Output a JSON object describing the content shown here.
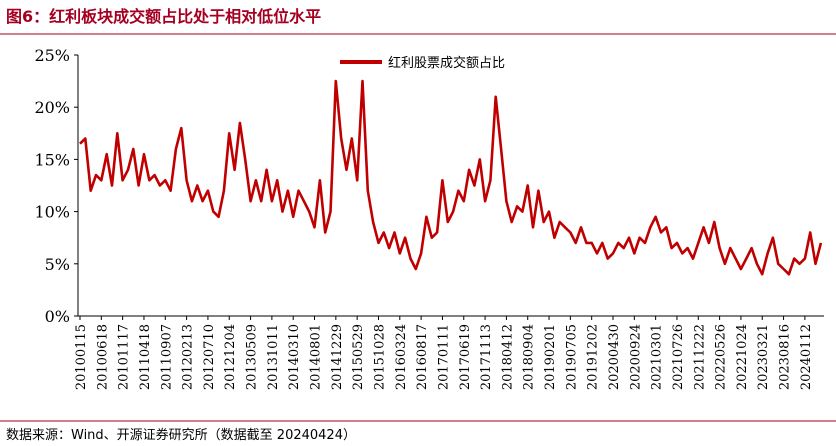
{
  "title": "图6：红利板块成交额占比处于相对低位水平",
  "source": "数据来源：Wind、开源证券研究所（数据截至 20240424）",
  "chart_data": {
    "type": "line",
    "categories": [
      "20100115",
      null,
      null,
      null,
      "20100618",
      null,
      null,
      null,
      "20101117",
      null,
      null,
      null,
      "20110418",
      null,
      null,
      null,
      "20110907",
      null,
      null,
      null,
      "20120213",
      null,
      null,
      null,
      "20120710",
      null,
      null,
      null,
      "20121204",
      null,
      null,
      null,
      "20130509",
      null,
      null,
      null,
      "20131011",
      null,
      null,
      null,
      "20140310",
      null,
      null,
      null,
      "20140801",
      null,
      null,
      null,
      "20141229",
      null,
      null,
      null,
      "20150529",
      null,
      null,
      null,
      "20151028",
      null,
      null,
      null,
      "20160324",
      null,
      null,
      null,
      "20160817",
      null,
      null,
      null,
      "20170111",
      null,
      null,
      null,
      "20170619",
      null,
      null,
      null,
      "20171113",
      null,
      null,
      null,
      "20180412",
      null,
      null,
      null,
      "20180904",
      null,
      null,
      null,
      "20190201",
      null,
      null,
      null,
      "20190705",
      null,
      null,
      null,
      "20191202",
      null,
      null,
      null,
      "20200430",
      null,
      null,
      null,
      "20200924",
      null,
      null,
      null,
      "20210301",
      null,
      null,
      null,
      "20210726",
      null,
      null,
      null,
      "20211222",
      null,
      null,
      null,
      "20220526",
      null,
      null,
      null,
      "20221024",
      null,
      null,
      null,
      "20230321",
      null,
      null,
      null,
      "20230816",
      null,
      null,
      null,
      "20240112",
      null,
      null,
      null
    ],
    "series": [
      {
        "name": "红利股票成交额占比",
        "color": "#c00000",
        "values": [
          16.5,
          17,
          12,
          13.5,
          13,
          15.5,
          12.5,
          17.5,
          13,
          14,
          16,
          12.5,
          15.5,
          13,
          13.5,
          12.5,
          13,
          12,
          16,
          18,
          13,
          11,
          12.5,
          11,
          12,
          10,
          9.5,
          12,
          17.5,
          14,
          18.5,
          15,
          11,
          13,
          11,
          14,
          11,
          13,
          10,
          12,
          9.5,
          12,
          11,
          10,
          8.5,
          13,
          8,
          10,
          22.5,
          17,
          14,
          17,
          13,
          22.5,
          12,
          9,
          7,
          8,
          6.5,
          8,
          6,
          7.5,
          5.5,
          4.5,
          6,
          9.5,
          7.5,
          8,
          13,
          9,
          10,
          12,
          11,
          14,
          12.5,
          15,
          11,
          13,
          21,
          16,
          11,
          9,
          10.5,
          10,
          12.5,
          8.5,
          12,
          9,
          10,
          7.5,
          9,
          8.5,
          8,
          7,
          8.5,
          7,
          7,
          6,
          7,
          5.5,
          6,
          7,
          6.5,
          7.5,
          6,
          7.5,
          7,
          8.5,
          9.5,
          8,
          8.5,
          6.5,
          7,
          6,
          6.5,
          5.5,
          7,
          8.5,
          7,
          9,
          6.5,
          5,
          6.5,
          5.5,
          4.5,
          5.5,
          6.5,
          5,
          4,
          6,
          7.5,
          5,
          4.5,
          4,
          5.5,
          5,
          5.5,
          8,
          5,
          7
        ]
      }
    ],
    "ylim": [
      0,
      25
    ],
    "yticks": [
      {
        "value": 0,
        "label": "0%"
      },
      {
        "value": 5,
        "label": "5%"
      },
      {
        "value": 10,
        "label": "10%"
      },
      {
        "value": 15,
        "label": "15%"
      },
      {
        "value": 20,
        "label": "20%"
      },
      {
        "value": 25,
        "label": "25%"
      }
    ],
    "grid": false,
    "legend": "top"
  }
}
